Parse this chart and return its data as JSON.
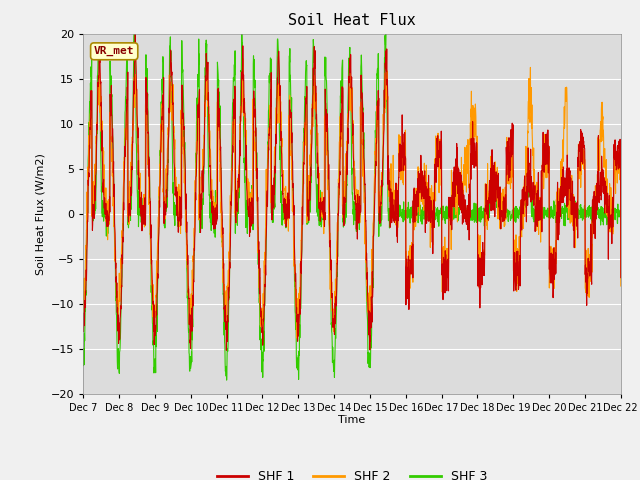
{
  "title": "Soil Heat Flux",
  "ylabel": "Soil Heat Flux (W/m2)",
  "xlabel": "Time",
  "xlim": [
    0,
    15
  ],
  "ylim": [
    -20,
    20
  ],
  "yticks": [
    -20,
    -15,
    -10,
    -5,
    0,
    5,
    10,
    15,
    20
  ],
  "xtick_labels": [
    "Dec 7",
    "Dec 8",
    "Dec 9",
    "Dec 10",
    "Dec 11",
    "Dec 12",
    "Dec 13",
    "Dec 14",
    "Dec 15",
    "Dec 16",
    "Dec 17",
    "Dec 18",
    "Dec 19",
    "Dec 20",
    "Dec 21",
    "Dec 22"
  ],
  "colors": {
    "SHF 1": "#cc0000",
    "SHF 2": "#ff9900",
    "SHF 3": "#33cc00"
  },
  "background_color": "#dcdcdc",
  "fig_background": "#f0f0f0",
  "annotation_text": "VR_met",
  "annotation_box_color": "#ffffcc",
  "annotation_border_color": "#aa8800",
  "annotation_text_color": "#880000",
  "line_width": 0.8
}
